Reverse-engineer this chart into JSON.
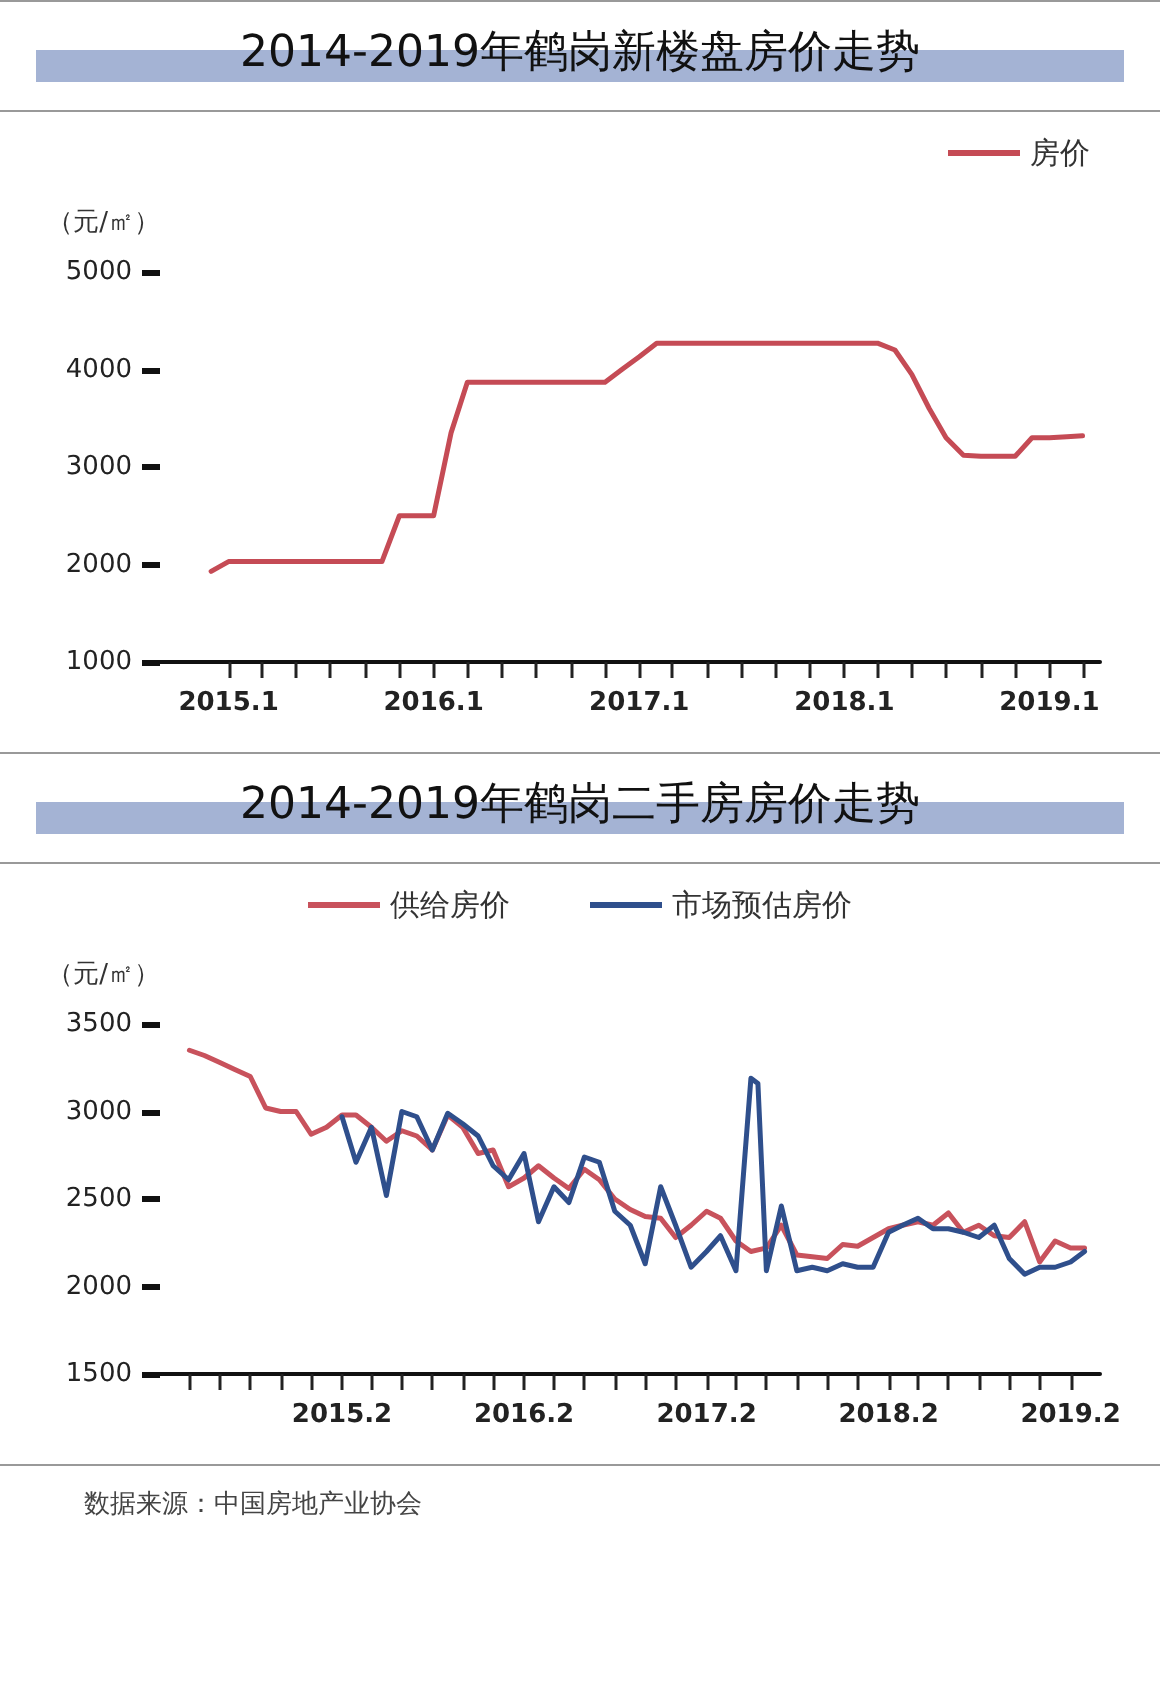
{
  "chart_data": [
    {
      "type": "line",
      "title": "2014-2019年鹤岗新楼盘房价走势",
      "ylabel": "（元/㎡）",
      "legend": "top right",
      "line_style": "solid",
      "x": [
        "2014-12",
        "2015-01",
        "2015-02",
        "2015-03",
        "2015-04",
        "2015-05",
        "2015-06",
        "2015-07",
        "2015-08",
        "2015-09",
        "2015-10",
        "2015-11",
        "2015-12",
        "2016-01",
        "2016-02",
        "2016-03",
        "2016-04",
        "2016-05",
        "2016-06",
        "2016-07",
        "2016-08",
        "2016-09",
        "2016-10",
        "2016-11",
        "2016-12",
        "2017-01",
        "2017-02",
        "2017-03",
        "2017-04",
        "2017-05",
        "2017-06",
        "2017-07",
        "2017-08",
        "2017-09",
        "2017-10",
        "2017-11",
        "2017-12",
        "2018-01",
        "2018-02",
        "2018-03",
        "2018-04",
        "2018-05",
        "2018-06",
        "2018-07",
        "2018-08",
        "2018-09",
        "2018-10",
        "2018-11",
        "2018-12",
        "2019-01",
        "2019-02",
        "2019-03"
      ],
      "series": [
        {
          "name": "房价",
          "color": "#c54b55",
          "values": [
            1930,
            2030,
            2030,
            2030,
            2030,
            2030,
            2030,
            2030,
            2030,
            2030,
            2030,
            2500,
            2500,
            2500,
            3350,
            3870,
            3870,
            3870,
            3870,
            3870,
            3870,
            3870,
            3870,
            3870,
            4000,
            4130,
            4270,
            4270,
            4270,
            4270,
            4270,
            4270,
            4270,
            4270,
            4270,
            4270,
            4270,
            4270,
            4270,
            4270,
            4200,
            3950,
            3600,
            3300,
            3120,
            3110,
            3110,
            3110,
            3300,
            3300,
            3310,
            3320
          ]
        }
      ],
      "xlim": [
        "2014-09",
        "2019-04"
      ],
      "xticks": [
        {
          "value": "2015-01",
          "label": "2015.1"
        },
        {
          "value": "2015-03",
          "label": null
        },
        {
          "value": "2015-05",
          "label": null
        },
        {
          "value": "2015-07",
          "label": null
        },
        {
          "value": "2015-09",
          "label": null
        },
        {
          "value": "2015-11",
          "label": null
        },
        {
          "value": "2016-01",
          "label": "2016.1"
        },
        {
          "value": "2016-03",
          "label": null
        },
        {
          "value": "2016-05",
          "label": null
        },
        {
          "value": "2016-07",
          "label": null
        },
        {
          "value": "2016-09",
          "label": null
        },
        {
          "value": "2016-11",
          "label": null
        },
        {
          "value": "2017-01",
          "label": "2017.1"
        },
        {
          "value": "2017-03",
          "label": null
        },
        {
          "value": "2017-05",
          "label": null
        },
        {
          "value": "2017-07",
          "label": null
        },
        {
          "value": "2017-09",
          "label": null
        },
        {
          "value": "2017-11",
          "label": null
        },
        {
          "value": "2018-01",
          "label": "2018.1"
        },
        {
          "value": "2018-03",
          "label": null
        },
        {
          "value": "2018-05",
          "label": null
        },
        {
          "value": "2018-07",
          "label": null
        },
        {
          "value": "2018-09",
          "label": null
        },
        {
          "value": "2018-11",
          "label": null
        },
        {
          "value": "2019-01",
          "label": "2019.1"
        },
        {
          "value": "2019-03",
          "label": null
        }
      ],
      "ylim": [
        1000,
        5000
      ],
      "yticks": [
        1000,
        2000,
        3000,
        4000,
        5000
      ]
    },
    {
      "type": "line",
      "title": "2014-2019年鹤岗二手房房价走势",
      "ylabel": "（元/㎡）",
      "legend": "top",
      "line_style": "solid",
      "annotations": [
        "数据来源：中国房地产业协会"
      ],
      "series": [
        {
          "name": "供给房价",
          "color": "#c8525c",
          "x": [
            "2014-04",
            "2014-05",
            "2014-06",
            "2014-07",
            "2014-08",
            "2014-09",
            "2014-10",
            "2014-11",
            "2014-12",
            "2015-01",
            "2015-02",
            "2015-03",
            "2015-04",
            "2015-05",
            "2015-06",
            "2015-07",
            "2015-08",
            "2015-09",
            "2015-10",
            "2015-11",
            "2015-12",
            "2016-01",
            "2016-02",
            "2016-03",
            "2016-04",
            "2016-05",
            "2016-06",
            "2016-07",
            "2016-08",
            "2016-09",
            "2016-10",
            "2016-11",
            "2016-12",
            "2017-01",
            "2017-02",
            "2017-03",
            "2017-04",
            "2017-05",
            "2017-06",
            "2017-07",
            "2017-08",
            "2017-09",
            "2017-10",
            "2017-11",
            "2017-12",
            "2018-01",
            "2018-02",
            "2018-03",
            "2018-04",
            "2018-05",
            "2018-06",
            "2018-07",
            "2018-08",
            "2018-09",
            "2018-10",
            "2018-11",
            "2018-12",
            "2019-01",
            "2019-02",
            "2019-03"
          ],
          "values": [
            3350,
            3320,
            3280,
            3240,
            3200,
            3020,
            3000,
            3000,
            2870,
            2910,
            2980,
            2980,
            2910,
            2830,
            2890,
            2860,
            2780,
            2980,
            2910,
            2760,
            2780,
            2570,
            2620,
            2690,
            2620,
            2560,
            2670,
            2610,
            2500,
            2440,
            2400,
            2390,
            2280,
            2350,
            2430,
            2390,
            2260,
            2200,
            2220,
            2350,
            2180,
            2170,
            2160,
            2240,
            2230,
            2280,
            2330,
            2350,
            2370,
            2350,
            2420,
            2310,
            2350,
            2290,
            2280,
            2370,
            2140,
            2260,
            2220,
            2220
          ]
        },
        {
          "name": "市场预估房价",
          "color": "#2f4f8c",
          "x": [
            "2015-02",
            "2015-03",
            "2015-04",
            "2015-05",
            "2015-06",
            "2015-07",
            "2015-08",
            "2015-09",
            "2015-10",
            "2015-11",
            "2015-12",
            "2016-01",
            "2016-02",
            "2016-03",
            "2016-04",
            "2016-05",
            "2016-06",
            "2016-07",
            "2016-08",
            "2016-09",
            "2016-10",
            "2016-11",
            "2016-12",
            "2017-01",
            "2017-02",
            "2017-03",
            "2017-04",
            "2017-05",
            "2017-05-15",
            "2017-06",
            "2017-07",
            "2017-08",
            "2017-09",
            "2017-10",
            "2017-11",
            "2017-12",
            "2018-01",
            "2018-02",
            "2018-03",
            "2018-04",
            "2018-05",
            "2018-06",
            "2018-07",
            "2018-08",
            "2018-09",
            "2018-10",
            "2018-11",
            "2018-12",
            "2019-01",
            "2019-02",
            "2019-03"
          ],
          "values": [
            2970,
            2710,
            2910,
            2520,
            3000,
            2970,
            2780,
            2990,
            2930,
            2860,
            2690,
            2610,
            2760,
            2370,
            2570,
            2480,
            2740,
            2710,
            2430,
            2350,
            2130,
            2570,
            2350,
            2110,
            2200,
            2290,
            2090,
            3190,
            3160,
            2090,
            2460,
            2090,
            2110,
            2090,
            2130,
            2110,
            2110,
            2310,
            2350,
            2390,
            2330,
            2330,
            2310,
            2280,
            2350,
            2160,
            2070,
            2110,
            2110,
            2140,
            2200
          ]
        }
      ],
      "xlim": [
        "2014-02",
        "2019-04"
      ],
      "xticks": [
        {
          "value": "2014-04",
          "label": null
        },
        {
          "value": "2014-06",
          "label": null
        },
        {
          "value": "2014-08",
          "label": null
        },
        {
          "value": "2014-10",
          "label": null
        },
        {
          "value": "2014-12",
          "label": null
        },
        {
          "value": "2015-02",
          "label": "2015.2"
        },
        {
          "value": "2015-04",
          "label": null
        },
        {
          "value": "2015-06",
          "label": null
        },
        {
          "value": "2015-08",
          "label": null
        },
        {
          "value": "2015-10",
          "label": null
        },
        {
          "value": "2015-12",
          "label": null
        },
        {
          "value": "2016-02",
          "label": "2016.2"
        },
        {
          "value": "2016-04",
          "label": null
        },
        {
          "value": "2016-06",
          "label": null
        },
        {
          "value": "2016-08",
          "label": null
        },
        {
          "value": "2016-10",
          "label": null
        },
        {
          "value": "2016-12",
          "label": null
        },
        {
          "value": "2017-02",
          "label": "2017.2"
        },
        {
          "value": "2017-04",
          "label": null
        },
        {
          "value": "2017-06",
          "label": null
        },
        {
          "value": "2017-08",
          "label": null
        },
        {
          "value": "2017-10",
          "label": null
        },
        {
          "value": "2017-12",
          "label": null
        },
        {
          "value": "2018-02",
          "label": "2018.2"
        },
        {
          "value": "2018-04",
          "label": null
        },
        {
          "value": "2018-06",
          "label": null
        },
        {
          "value": "2018-08",
          "label": null
        },
        {
          "value": "2018-10",
          "label": null
        },
        {
          "value": "2018-12",
          "label": null
        },
        {
          "value": "2019-02",
          "label": "2019.2"
        }
      ],
      "ylim": [
        1500,
        3500
      ],
      "yticks": [
        1500,
        2000,
        2500,
        3000,
        3500
      ]
    }
  ]
}
